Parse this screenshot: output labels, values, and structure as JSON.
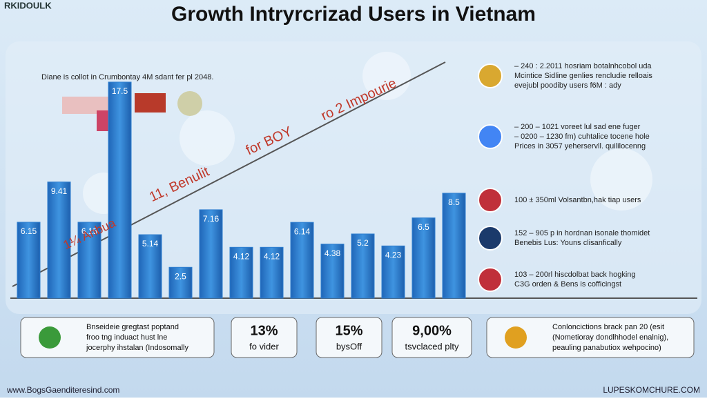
{
  "chart_data": {
    "type": "bar",
    "title": "Growth Intryrcrizad Users in Vietnam",
    "categories": [
      null,
      null,
      null,
      null,
      null,
      null,
      null,
      null,
      null,
      null,
      null,
      null,
      null,
      null,
      null
    ],
    "values": [
      6.15,
      9.41,
      6.15,
      17.5,
      5.14,
      2.5,
      7.16,
      4.12,
      4.12,
      6.14,
      4.38,
      5.2,
      4.23,
      6.5,
      8.5
    ],
    "color": "#2f7fd0",
    "ylim": [
      0,
      18
    ],
    "annotations": [
      "1¼ Anbua",
      "11, Benulit",
      "for BOY",
      "ro 2 Impourie"
    ]
  },
  "page": {
    "logo": "RKIDOULK",
    "note": "Diane is collot in Crumbontay 4M sdant fer pl 2048.",
    "side_items": [
      {
        "lines": [
          "– 240 : 2.2011 hosriam botalnhcobol uda",
          "Mcintice Sidline genlies rencludie relloais",
          "evejubl poodiby users f6M : ady"
        ]
      },
      {
        "lines": [
          "– 200 – 1021  voreet lul sad ene fuger",
          "– 0200 – 1230  fm) cuhtalice tocene hole",
          "Prices in 3057  yeherservll. quililocenng"
        ]
      },
      {
        "lines": [
          "100 ± 350ml Volsantbn,hak tiap users"
        ]
      },
      {
        "lines": [
          "152 – 905 p in hordnan isonale thomidet",
          "Benebis Lus: Youns clisanfically"
        ]
      },
      {
        "lines": [
          "103 – 200rl hiscdolbat back hogking",
          "C3G orden & Bens is cofficingst"
        ]
      }
    ],
    "bottom_boxes": [
      {
        "lines": [
          "Bnseideie gregtast poptand",
          "froo tng induact hust lne",
          "jocerphy ihstalan (Indosomally"
        ]
      },
      {
        "big": "13%",
        "lines": [
          "fo vider"
        ]
      },
      {
        "big": "15%",
        "lines": [
          "bysOff"
        ]
      },
      {
        "big": "9,00%",
        "lines": [
          "tsvclaced plty"
        ]
      },
      {
        "lines": [
          "Conloncictions brack pan 20 (esit",
          "(Nometioray dondlhhodel enalnig),",
          "peauling panabutiox wehpocino)"
        ]
      }
    ],
    "footer_left": "www.BogsGaenditeresind.com",
    "footer_right": "LUPESKOMCHURE.COM"
  }
}
